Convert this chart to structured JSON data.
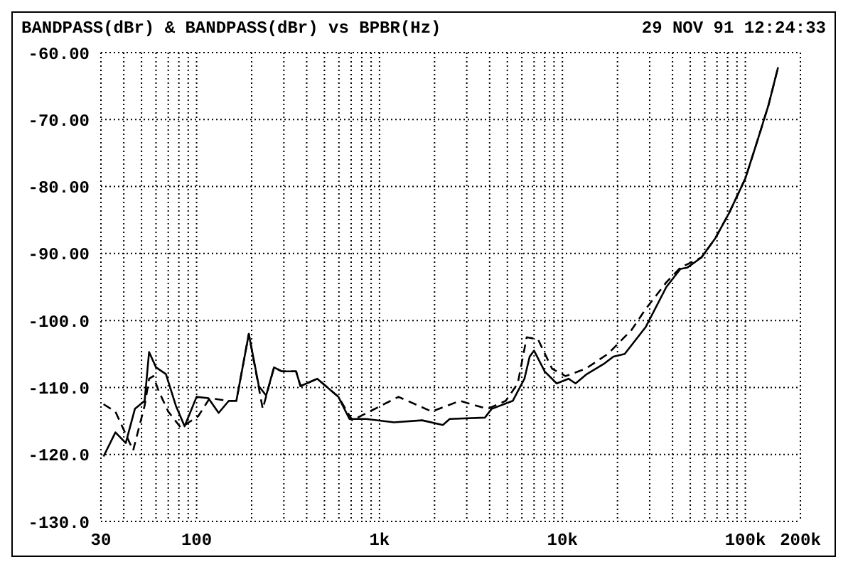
{
  "chart_data": {
    "type": "line",
    "title": "BANDPASS(dBr) & BANDPASS(dBr) vs BPBR(Hz)",
    "annotations": [
      "29 NOV 91 12:24:33"
    ],
    "log": "x",
    "grid": true,
    "marker": "none",
    "xlim": [
      30,
      200000
    ],
    "xticks": [
      30,
      {
        "value": 40,
        "label": null
      },
      {
        "value": 50,
        "label": null
      },
      {
        "value": 60,
        "label": null
      },
      {
        "value": 70,
        "label": null
      },
      {
        "value": 80,
        "label": null
      },
      {
        "value": 90,
        "label": null
      },
      100,
      {
        "value": 200,
        "label": null
      },
      {
        "value": 300,
        "label": null
      },
      {
        "value": 400,
        "label": null
      },
      {
        "value": 500,
        "label": null
      },
      {
        "value": 600,
        "label": null
      },
      {
        "value": 700,
        "label": null
      },
      {
        "value": 800,
        "label": null
      },
      {
        "value": 900,
        "label": null
      },
      {
        "value": 1000,
        "label": "1k"
      },
      {
        "value": 2000,
        "label": null
      },
      {
        "value": 3000,
        "label": null
      },
      {
        "value": 4000,
        "label": null
      },
      {
        "value": 5000,
        "label": null
      },
      {
        "value": 6000,
        "label": null
      },
      {
        "value": 7000,
        "label": null
      },
      {
        "value": 8000,
        "label": null
      },
      {
        "value": 9000,
        "label": null
      },
      {
        "value": 10000,
        "label": "10k"
      },
      {
        "value": 20000,
        "label": null
      },
      {
        "value": 30000,
        "label": null
      },
      {
        "value": 40000,
        "label": null
      },
      {
        "value": 50000,
        "label": null
      },
      {
        "value": 60000,
        "label": null
      },
      {
        "value": 70000,
        "label": null
      },
      {
        "value": 80000,
        "label": null
      },
      {
        "value": 90000,
        "label": null
      },
      {
        "value": 100000,
        "label": "100k"
      },
      {
        "value": 200000,
        "label": "200k"
      }
    ],
    "ylim": [
      -130,
      -60
    ],
    "yticks": [
      {
        "value": -130,
        "label": "-130.0"
      },
      {
        "value": -120,
        "label": "-120.0"
      },
      {
        "value": -110,
        "label": "-110.0"
      },
      {
        "value": -100,
        "label": "-100.0"
      },
      {
        "value": -90,
        "label": "-90.00"
      },
      {
        "value": -80,
        "label": "-80.00"
      },
      {
        "value": -70,
        "label": "-70.00"
      },
      {
        "value": -60,
        "label": "-60.00"
      }
    ],
    "series": [
      {
        "color": "#000000",
        "line_style": "solid",
        "x": [
          31,
          36,
          41,
          46,
          52,
          55,
          60,
          68,
          77,
          86,
          100,
          116,
          132,
          150,
          165,
          193,
          219,
          240,
          265,
          293,
          350,
          370,
          457,
          596,
          685,
          845,
          1200,
          1710,
          2220,
          2420,
          3770,
          4100,
          5350,
          6200,
          6620,
          7000,
          8000,
          9300,
          10800,
          11800,
          13600,
          16800,
          19000,
          21900,
          28500,
          37000,
          44200,
          48200,
          57500,
          68600,
          81700,
          100000,
          116000,
          134000,
          151000
        ],
        "values": [
          -120.3,
          -116.7,
          -118.3,
          -113.2,
          -112,
          -104.7,
          -107,
          -108,
          -112.7,
          -115.8,
          -111.4,
          -111.6,
          -113.8,
          -112,
          -112,
          -102,
          -109.8,
          -111.2,
          -107,
          -107.6,
          -107.6,
          -109.8,
          -108.7,
          -111.4,
          -114.7,
          -114.7,
          -115.2,
          -114.9,
          -115.6,
          -114.7,
          -114.5,
          -113.2,
          -112,
          -108.7,
          -105.4,
          -104.5,
          -107.6,
          -109.4,
          -108.7,
          -109.4,
          -108,
          -106.5,
          -105.4,
          -105,
          -101,
          -95,
          -92.3,
          -92.1,
          -90.6,
          -87.7,
          -83.9,
          -78.8,
          -73.3,
          -67.8,
          -62.2
        ]
      },
      {
        "color": "#000000",
        "line_style": "dashed",
        "x": [
          31,
          36,
          45,
          52,
          55,
          58,
          62,
          70,
          82,
          102,
          118,
          150,
          165,
          193,
          230,
          265,
          293,
          350,
          370,
          457,
          596,
          710,
          1270,
          1930,
          2750,
          3900,
          4900,
          5700,
          6380,
          7350,
          8780,
          10400,
          13400,
          17700,
          23900,
          28500,
          37000,
          44200,
          57500,
          68600,
          81700,
          100000,
          116000,
          134000,
          151000
        ],
        "values": [
          -112.5,
          -113.6,
          -119.4,
          -112.7,
          -108.7,
          -108.3,
          -110.5,
          -113.6,
          -116,
          -114.3,
          -111.6,
          -112,
          -112,
          -102,
          -113.2,
          -107,
          -107.6,
          -107.6,
          -109.8,
          -108.7,
          -111.4,
          -114.9,
          -111.4,
          -113.6,
          -112,
          -113.2,
          -112,
          -109.4,
          -102.5,
          -102.8,
          -107.2,
          -108.3,
          -107.2,
          -105,
          -101.4,
          -98.3,
          -94.3,
          -92.1,
          -90.6,
          -87.7,
          -83.9,
          -78.8,
          -73.3,
          -67.8,
          -62.2
        ]
      }
    ]
  }
}
